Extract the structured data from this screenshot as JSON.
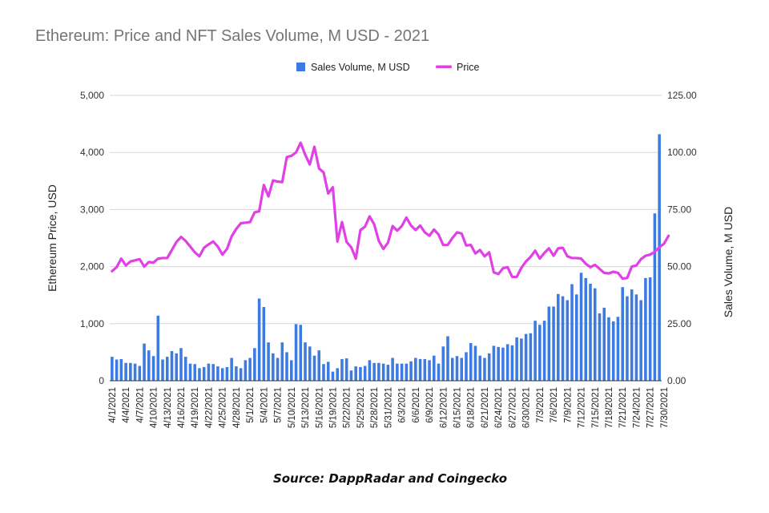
{
  "colors": {
    "volume": "#3d7be0",
    "price": "#e040e6",
    "title": "#757575",
    "grid": "#d6d6d6"
  },
  "source": "Source: DappRadar and Coingecko",
  "chart_data": {
    "type": "bar+line",
    "title": "Ethereum: Price and NFT Sales Volume, M USD - 2021",
    "legend_position": "top",
    "grid": true,
    "y_left": {
      "label": "Ethereum Price, USD",
      "range": [
        0,
        5000
      ],
      "ticks": [
        "0",
        "1,000",
        "2,000",
        "3,000",
        "4,000",
        "5,000"
      ]
    },
    "y_right": {
      "label": "Sales Volume, M USD",
      "range": [
        0,
        125
      ],
      "ticks": [
        "0.00",
        "25.00",
        "50.00",
        "75.00",
        "100.00",
        "125.00"
      ]
    },
    "x_tick_labels": [
      "4/1/2021",
      "4/4/2021",
      "4/7/2021",
      "4/10/2021",
      "4/13/2021",
      "4/16/2021",
      "4/19/2021",
      "4/22/2021",
      "4/25/2021",
      "4/28/2021",
      "5/1/2021",
      "5/4/2021",
      "5/7/2021",
      "5/10/2021",
      "5/13/2021",
      "5/16/2021",
      "5/19/2021",
      "5/22/2021",
      "5/25/2021",
      "5/28/2021",
      "5/31/2021",
      "6/3/2021",
      "6/6/2021",
      "6/9/2021",
      "6/12/2021",
      "6/15/2021",
      "6/18/2021",
      "6/21/2021",
      "6/24/2021",
      "6/27/2021",
      "6/30/2021",
      "7/3/2021",
      "7/6/2021",
      "7/9/2021",
      "7/12/2021",
      "7/15/2021",
      "7/18/2021",
      "7/21/2021",
      "7/24/2021",
      "7/27/2021",
      "7/30/2021"
    ],
    "x_start": "4/1/2021",
    "x_end": "7/31/2021",
    "series": [
      {
        "name": "Sales Volume, M USD",
        "type": "bar",
        "axis": "right",
        "values": [
          10.5,
          9.3,
          9.5,
          7.8,
          7.8,
          7.5,
          6.5,
          16.3,
          13.3,
          10.8,
          28.5,
          9.3,
          10.5,
          13,
          12,
          14.3,
          10.5,
          7.5,
          7.3,
          5.5,
          6,
          7.5,
          7.3,
          6.3,
          5.5,
          6,
          10,
          6.3,
          5.5,
          9,
          10,
          14.3,
          36,
          32.3,
          16.8,
          12,
          10,
          16.8,
          12.5,
          9,
          24.8,
          24.5,
          16.8,
          15,
          11,
          13.3,
          7.3,
          8.3,
          4,
          5.5,
          9.5,
          9.8,
          4.5,
          6.3,
          6,
          6.5,
          9,
          7.8,
          7.8,
          7.5,
          7,
          10,
          7.5,
          7.5,
          7.5,
          8.5,
          10,
          9.5,
          9.5,
          9,
          11,
          7.5,
          15,
          19.5,
          10,
          10.8,
          10,
          12.5,
          16.5,
          15.3,
          11,
          10,
          12,
          15.3,
          14.8,
          14.5,
          16,
          15.5,
          19,
          18.5,
          20.5,
          20.8,
          26.3,
          24.5,
          26.3,
          32.5,
          32.5,
          38,
          37,
          35.3,
          42.3,
          37.8,
          47.3,
          45,
          42.5,
          40.5,
          29.5,
          32,
          27.8,
          26,
          28,
          41,
          37,
          40,
          37.8,
          35.3,
          45,
          45.3,
          73.3,
          108
        ]
      },
      {
        "name": "Price",
        "type": "line",
        "axis": "left",
        "values": [
          1920,
          1990,
          2140,
          2020,
          2090,
          2110,
          2130,
          2000,
          2080,
          2070,
          2140,
          2150,
          2150,
          2290,
          2430,
          2520,
          2450,
          2350,
          2250,
          2180,
          2330,
          2390,
          2440,
          2350,
          2210,
          2310,
          2530,
          2660,
          2760,
          2770,
          2780,
          2950,
          2970,
          3430,
          3230,
          3510,
          3490,
          3480,
          3920,
          3940,
          4000,
          4170,
          3960,
          3790,
          4100,
          3720,
          3650,
          3280,
          3390,
          2440,
          2780,
          2430,
          2340,
          2140,
          2640,
          2700,
          2880,
          2740,
          2450,
          2310,
          2420,
          2710,
          2630,
          2710,
          2860,
          2720,
          2640,
          2720,
          2600,
          2540,
          2650,
          2560,
          2380,
          2380,
          2500,
          2600,
          2580,
          2370,
          2380,
          2230,
          2290,
          2180,
          2250,
          1900,
          1870,
          1970,
          1990,
          1820,
          1820,
          1980,
          2090,
          2170,
          2280,
          2140,
          2240,
          2320,
          2190,
          2320,
          2330,
          2180,
          2150,
          2150,
          2140,
          2050,
          1990,
          2030,
          1960,
          1890,
          1880,
          1910,
          1890,
          1790,
          1800,
          2000,
          2020,
          2130,
          2190,
          2210,
          2260,
          2340,
          2400,
          2540
        ]
      }
    ]
  }
}
